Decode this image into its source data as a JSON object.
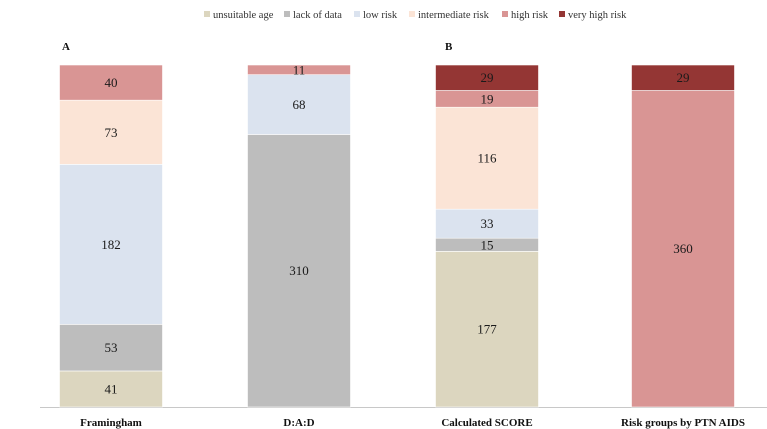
{
  "chart_data": {
    "type": "bar",
    "stacked": true,
    "panel_labels": [
      "A",
      "B"
    ],
    "categories": [
      "Framingham",
      "D:A:D",
      "Calculated SCORE",
      "Risk groups by PTN AIDS"
    ],
    "series": [
      {
        "name": "unsuitable age",
        "color": "#dcd6bf",
        "values": [
          41,
          0,
          177,
          0
        ]
      },
      {
        "name": "lack of data",
        "color": "#bdbdbd",
        "values": [
          53,
          310,
          15,
          0
        ]
      },
      {
        "name": "low risk",
        "color": "#dbe3ef",
        "values": [
          182,
          68,
          33,
          0
        ]
      },
      {
        "name": "intermediate risk",
        "color": "#fbe4d6",
        "values": [
          73,
          0,
          116,
          0
        ]
      },
      {
        "name": "high risk",
        "color": "#d99594",
        "values": [
          40,
          11,
          19,
          360
        ]
      },
      {
        "name": "very high risk",
        "color": "#943634",
        "values": [
          0,
          0,
          29,
          29
        ]
      }
    ],
    "ylim": [
      0,
      389
    ],
    "legend_position": "top",
    "grid": false
  }
}
